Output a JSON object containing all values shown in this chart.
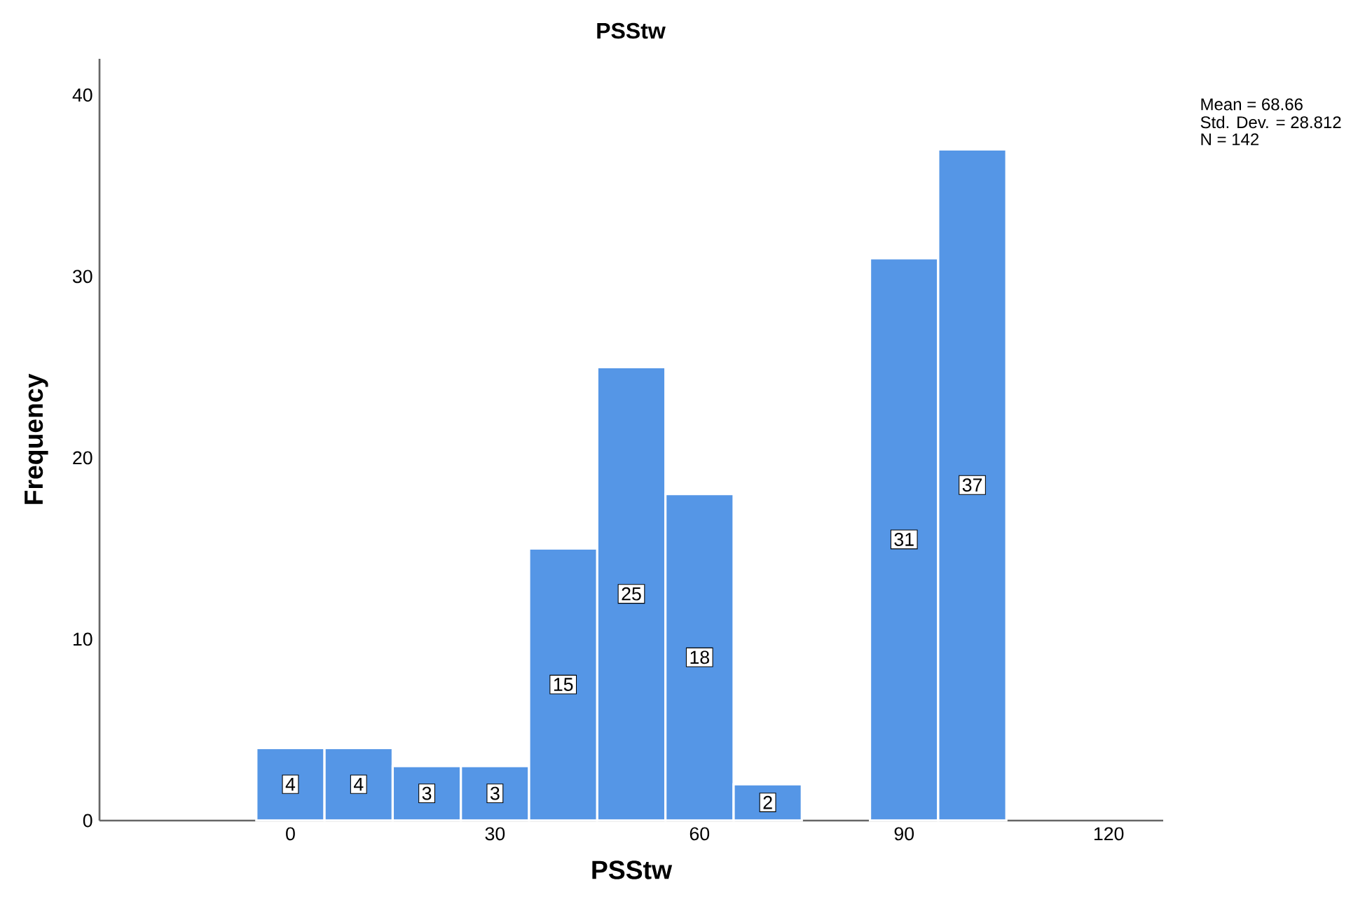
{
  "chart_data": {
    "type": "histogram",
    "title": "PSStw",
    "xlabel": "PSStw",
    "ylabel": "Frequency",
    "bins": [
      -5,
      5,
      15,
      25,
      35,
      45,
      55,
      65,
      75,
      85,
      95,
      105
    ],
    "values": [
      4,
      4,
      3,
      3,
      15,
      25,
      18,
      2,
      0,
      31,
      37
    ],
    "value_labels": [
      "4",
      "4",
      "3",
      "3",
      "15",
      "25",
      "18",
      "2",
      null,
      "31",
      "37"
    ],
    "color": "#5596e6",
    "xlim": [
      -28,
      128
    ],
    "ylim": [
      0,
      42
    ],
    "xticks": [
      0,
      30,
      60,
      90,
      120
    ],
    "yticks": [
      0,
      10,
      20,
      30,
      40
    ],
    "grid": false,
    "annotations": [
      "Mean = 68.66",
      "Std. Dev. = 28.812",
      "N = 142"
    ]
  }
}
